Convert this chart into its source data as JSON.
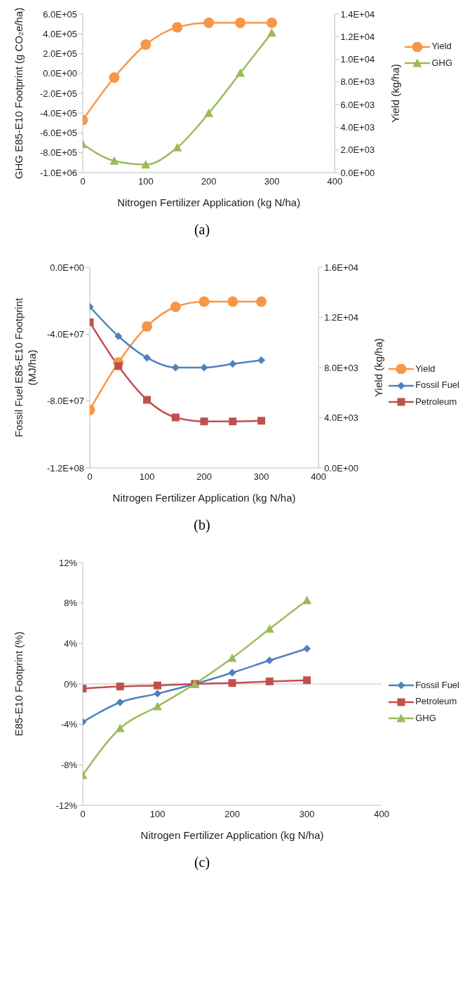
{
  "chart_data": [
    {
      "type": "line",
      "xlabel": "Nitrogen Fertilizer Application (kg N/ha)",
      "ylabel": "GHG E85-E10 Footprint (g CO₂e/ha)",
      "y2label": "Yield (kg/ha)",
      "annotations": [
        "(a)"
      ],
      "x": [
        0,
        50,
        100,
        150,
        200,
        250,
        300
      ],
      "xlim": [
        0,
        400
      ],
      "xticks": [
        0,
        100,
        200,
        300,
        400
      ],
      "ylim": [
        -1000000,
        600000
      ],
      "yticks": [
        {
          "value": -1000000,
          "label": "-1.0E+06"
        },
        {
          "value": -800000,
          "label": "-8.0E+05"
        },
        {
          "value": -600000,
          "label": "-6.0E+05"
        },
        {
          "value": -400000,
          "label": "-4.0E+05"
        },
        {
          "value": -200000,
          "label": "-2.0E+05"
        },
        {
          "value": 0,
          "label": "0.0E+00"
        },
        {
          "value": 200000,
          "label": "2.0E+05"
        },
        {
          "value": 400000,
          "label": "4.0E+05"
        },
        {
          "value": 600000,
          "label": "6.0E+05"
        }
      ],
      "y2lim": [
        0,
        14000
      ],
      "y2ticks": [
        {
          "value": 0,
          "label": "0.0E+00"
        },
        {
          "value": 2000,
          "label": "2.0E+03"
        },
        {
          "value": 4000,
          "label": "4.0E+03"
        },
        {
          "value": 6000,
          "label": "6.0E+03"
        },
        {
          "value": 8000,
          "label": "8.0E+03"
        },
        {
          "value": 10000,
          "label": "1.0E+04"
        },
        {
          "value": 12000,
          "label": "1.2E+04"
        },
        {
          "value": 14000,
          "label": "1.4E+04"
        }
      ],
      "grid": false,
      "legend": "top right",
      "series": [
        {
          "name": "Yield",
          "color": "#f79646",
          "marker": "circle",
          "axis": "y2",
          "values": [
            4650,
            8390,
            11300,
            12830,
            13230,
            13230,
            13230
          ]
        },
        {
          "name": "GHG",
          "color": "#9bbb59",
          "marker": "triangle",
          "values": [
            -713000,
            -882000,
            -920000,
            -747000,
            -400000,
            5000,
            410000
          ]
        }
      ]
    },
    {
      "type": "line",
      "xlabel": "Nitrogen Fertilizer Application (kg N/ha)",
      "ylabel": "Fossil Fuel E85-E10 Footprint (MJ/ha)",
      "y2label": "Yield (kg/ha)",
      "annotations": [
        "(b)"
      ],
      "x": [
        0,
        50,
        100,
        150,
        200,
        250,
        300
      ],
      "xlim": [
        0,
        400
      ],
      "xticks": [
        0,
        100,
        200,
        300,
        400
      ],
      "ylim": [
        -120000000,
        0
      ],
      "yticks": [
        {
          "value": -120000000,
          "label": "-1.2E+08"
        },
        {
          "value": -80000000,
          "label": "-8.0E+07"
        },
        {
          "value": -40000000,
          "label": "-4.0E+07"
        },
        {
          "value": 0,
          "label": "0.0E+00"
        }
      ],
      "y2lim": [
        0,
        16000
      ],
      "y2ticks": [
        {
          "value": 0,
          "label": "0.0E+00"
        },
        {
          "value": 4000,
          "label": "4.0E+03"
        },
        {
          "value": 8000,
          "label": "8.0E+03"
        },
        {
          "value": 12000,
          "label": "1.2E+04"
        },
        {
          "value": 16000,
          "label": "1.6E+04"
        }
      ],
      "grid": false,
      "legend": "right",
      "series": [
        {
          "name": "Yield",
          "color": "#f79646",
          "marker": "circle",
          "axis": "y2",
          "values": [
            4620,
            8400,
            11280,
            12840,
            13260,
            13260,
            13260
          ]
        },
        {
          "name": "Fossil Fuel",
          "color": "#4f81bd",
          "marker": "diamond",
          "values": [
            -23600000,
            -41200000,
            -54100000,
            -60000000,
            -60000000,
            -57800000,
            -55600000
          ]
        },
        {
          "name": "Petroleum",
          "color": "#c0504d",
          "marker": "square",
          "values": [
            -32900000,
            -59100000,
            -79300000,
            -89800000,
            -92200000,
            -92200000,
            -91800000
          ]
        }
      ]
    },
    {
      "type": "line",
      "xlabel": "Nitrogen Fertilizer Application (kg N/ha)",
      "ylabel": "E85-E10 Footprint (%)",
      "annotations": [
        "(c)"
      ],
      "x": [
        0,
        50,
        100,
        150,
        200,
        250,
        300
      ],
      "xlim": [
        0,
        400
      ],
      "xticks": [
        0,
        100,
        200,
        300,
        400
      ],
      "ylim": [
        -12,
        12
      ],
      "yticks": [
        {
          "value": -12,
          "label": "-12%"
        },
        {
          "value": -8,
          "label": "-8%"
        },
        {
          "value": -4,
          "label": "-4%"
        },
        {
          "value": 0,
          "label": "0%"
        },
        {
          "value": 4,
          "label": "4%"
        },
        {
          "value": 8,
          "label": "8%"
        },
        {
          "value": 12,
          "label": "12%"
        }
      ],
      "ref_lines": [
        {
          "axis": "y",
          "value": 0,
          "color": "#bfbfbf"
        }
      ],
      "grid": false,
      "legend": "right",
      "series": [
        {
          "name": "Fossil Fuel",
          "color": "#4f81bd",
          "marker": "diamond",
          "values": [
            -3.77,
            -1.82,
            -0.96,
            0,
            1.11,
            2.32,
            3.49
          ]
        },
        {
          "name": "Petroleum",
          "color": "#c0504d",
          "marker": "square",
          "values": [
            -0.46,
            -0.25,
            -0.15,
            0,
            0.09,
            0.25,
            0.37
          ]
        },
        {
          "name": "GHG",
          "color": "#9bbb59",
          "marker": "triangle",
          "values": [
            -9.02,
            -4.39,
            -2.22,
            0,
            2.56,
            5.44,
            8.28
          ]
        }
      ]
    }
  ]
}
